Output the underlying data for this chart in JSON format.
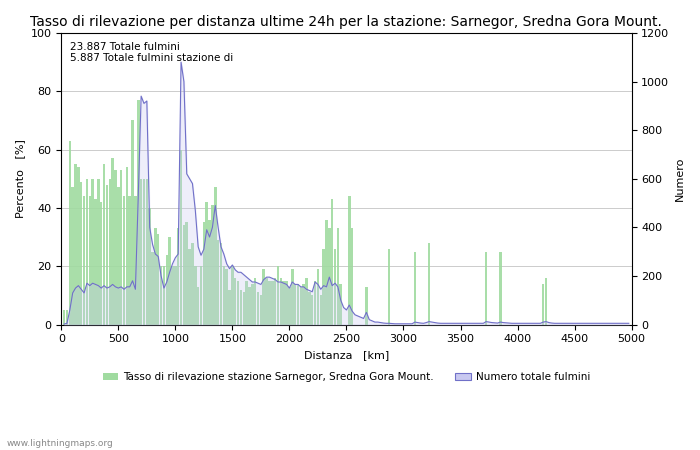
{
  "title": "Tasso di rilevazione per distanza ultime 24h per la stazione: Sarnegor, Sredna Gora Mount.",
  "xlabel": "Distanza   [km]",
  "ylabel_left": "Percento   [%]",
  "ylabel_right": "Numero",
  "annotation_line1": "23.887 Totale fulmini",
  "annotation_line2": "5.887 Totale fulmini stazione di",
  "legend_green": "Tasso di rilevazione stazione Sarnegor, Sredna Gora Mount.",
  "legend_blue": "Numero totale fulmini",
  "watermark": "www.lightningmaps.org",
  "xlim": [
    0,
    5000
  ],
  "ylim_left": [
    0,
    100
  ],
  "ylim_right": [
    0,
    1200
  ],
  "bar_color": "#a0dba0",
  "fill_color": "#c8c8f0",
  "line_color": "#7070c8",
  "background_color": "#ffffff",
  "grid_color": "#cccccc",
  "title_fontsize": 10,
  "label_fontsize": 8,
  "tick_fontsize": 8,
  "green_bars": [
    [
      25,
      5
    ],
    [
      50,
      5
    ],
    [
      75,
      63
    ],
    [
      100,
      47
    ],
    [
      125,
      55
    ],
    [
      150,
      54
    ],
    [
      175,
      49
    ],
    [
      200,
      44
    ],
    [
      225,
      50
    ],
    [
      250,
      44
    ],
    [
      275,
      50
    ],
    [
      300,
      43
    ],
    [
      325,
      50
    ],
    [
      350,
      42
    ],
    [
      375,
      55
    ],
    [
      400,
      48
    ],
    [
      425,
      50
    ],
    [
      450,
      57
    ],
    [
      475,
      53
    ],
    [
      500,
      47
    ],
    [
      525,
      53
    ],
    [
      550,
      44
    ],
    [
      575,
      54
    ],
    [
      600,
      44
    ],
    [
      625,
      70
    ],
    [
      650,
      44
    ],
    [
      675,
      77
    ],
    [
      700,
      50
    ],
    [
      725,
      50
    ],
    [
      750,
      50
    ],
    [
      775,
      40
    ],
    [
      800,
      25
    ],
    [
      825,
      33
    ],
    [
      850,
      31
    ],
    [
      875,
      20
    ],
    [
      900,
      20
    ],
    [
      925,
      24
    ],
    [
      950,
      30
    ],
    [
      975,
      20
    ],
    [
      1000,
      20
    ],
    [
      1025,
      33
    ],
    [
      1050,
      60
    ],
    [
      1075,
      34
    ],
    [
      1100,
      35
    ],
    [
      1125,
      26
    ],
    [
      1150,
      28
    ],
    [
      1175,
      20
    ],
    [
      1200,
      13
    ],
    [
      1225,
      20
    ],
    [
      1250,
      35
    ],
    [
      1275,
      42
    ],
    [
      1300,
      36
    ],
    [
      1325,
      41
    ],
    [
      1350,
      47
    ],
    [
      1375,
      29
    ],
    [
      1400,
      28
    ],
    [
      1425,
      20
    ],
    [
      1450,
      19
    ],
    [
      1475,
      12
    ],
    [
      1500,
      20
    ],
    [
      1525,
      16
    ],
    [
      1550,
      15
    ],
    [
      1575,
      12
    ],
    [
      1600,
      11
    ],
    [
      1625,
      15
    ],
    [
      1650,
      13
    ],
    [
      1675,
      14
    ],
    [
      1700,
      16
    ],
    [
      1725,
      11
    ],
    [
      1750,
      10
    ],
    [
      1775,
      19
    ],
    [
      1800,
      16
    ],
    [
      1825,
      15
    ],
    [
      1850,
      15
    ],
    [
      1875,
      16
    ],
    [
      1900,
      20
    ],
    [
      1925,
      16
    ],
    [
      1950,
      15
    ],
    [
      1975,
      15
    ],
    [
      2000,
      13
    ],
    [
      2025,
      19
    ],
    [
      2050,
      14
    ],
    [
      2075,
      14
    ],
    [
      2100,
      13
    ],
    [
      2125,
      14
    ],
    [
      2150,
      16
    ],
    [
      2175,
      11
    ],
    [
      2200,
      10
    ],
    [
      2225,
      15
    ],
    [
      2250,
      19
    ],
    [
      2275,
      10
    ],
    [
      2300,
      26
    ],
    [
      2325,
      36
    ],
    [
      2350,
      33
    ],
    [
      2375,
      43
    ],
    [
      2400,
      26
    ],
    [
      2425,
      33
    ],
    [
      2450,
      14
    ],
    [
      2475,
      0
    ],
    [
      2500,
      0
    ],
    [
      2525,
      44
    ],
    [
      2550,
      33
    ],
    [
      2575,
      0
    ],
    [
      2600,
      0
    ],
    [
      2625,
      0
    ],
    [
      2650,
      0
    ],
    [
      2675,
      13
    ],
    [
      2700,
      0
    ],
    [
      2725,
      0
    ],
    [
      2750,
      0
    ],
    [
      2775,
      0
    ],
    [
      2800,
      0
    ],
    [
      2825,
      0
    ],
    [
      2850,
      0
    ],
    [
      2875,
      26
    ],
    [
      2900,
      0
    ],
    [
      2925,
      0
    ],
    [
      2950,
      0
    ],
    [
      2975,
      0
    ],
    [
      3000,
      0
    ],
    [
      3025,
      0
    ],
    [
      3050,
      0
    ],
    [
      3075,
      0
    ],
    [
      3100,
      25
    ],
    [
      3125,
      0
    ],
    [
      3150,
      0
    ],
    [
      3175,
      0
    ],
    [
      3200,
      0
    ],
    [
      3225,
      28
    ],
    [
      3250,
      0
    ],
    [
      3275,
      0
    ],
    [
      3300,
      0
    ],
    [
      3325,
      0
    ],
    [
      3350,
      0
    ],
    [
      3375,
      0
    ],
    [
      3400,
      0
    ],
    [
      3425,
      0
    ],
    [
      3450,
      0
    ],
    [
      3475,
      0
    ],
    [
      3500,
      0
    ],
    [
      3525,
      0
    ],
    [
      3550,
      0
    ],
    [
      3575,
      0
    ],
    [
      3600,
      0
    ],
    [
      3625,
      0
    ],
    [
      3650,
      0
    ],
    [
      3675,
      0
    ],
    [
      3700,
      0
    ],
    [
      3725,
      25
    ],
    [
      3750,
      0
    ],
    [
      3775,
      0
    ],
    [
      3800,
      0
    ],
    [
      3825,
      0
    ],
    [
      3850,
      25
    ],
    [
      3875,
      0
    ],
    [
      3900,
      0
    ],
    [
      3925,
      0
    ],
    [
      3950,
      0
    ],
    [
      3975,
      0
    ],
    [
      4000,
      0
    ],
    [
      4025,
      0
    ],
    [
      4050,
      0
    ],
    [
      4075,
      0
    ],
    [
      4100,
      0
    ],
    [
      4125,
      0
    ],
    [
      4150,
      0
    ],
    [
      4175,
      0
    ],
    [
      4200,
      0
    ],
    [
      4225,
      14
    ],
    [
      4250,
      16
    ],
    [
      4275,
      0
    ],
    [
      4300,
      0
    ],
    [
      4325,
      0
    ],
    [
      4350,
      0
    ],
    [
      4375,
      0
    ],
    [
      4400,
      0
    ],
    [
      4425,
      0
    ],
    [
      4450,
      0
    ],
    [
      4475,
      0
    ],
    [
      4500,
      0
    ],
    [
      4525,
      0
    ],
    [
      4550,
      0
    ],
    [
      4575,
      0
    ],
    [
      4600,
      0
    ],
    [
      4625,
      0
    ],
    [
      4650,
      0
    ],
    [
      4675,
      0
    ],
    [
      4700,
      0
    ],
    [
      4725,
      0
    ],
    [
      4750,
      0
    ],
    [
      4775,
      0
    ],
    [
      4800,
      0
    ],
    [
      4825,
      0
    ],
    [
      4850,
      0
    ],
    [
      4875,
      0
    ],
    [
      4900,
      0
    ],
    [
      4925,
      0
    ],
    [
      4950,
      0
    ],
    [
      4975,
      0
    ]
  ],
  "blue_line_x": [
    25,
    50,
    75,
    100,
    125,
    150,
    175,
    200,
    225,
    250,
    275,
    300,
    325,
    350,
    375,
    400,
    425,
    450,
    475,
    500,
    525,
    550,
    575,
    600,
    625,
    650,
    675,
    700,
    725,
    750,
    775,
    800,
    825,
    850,
    875,
    900,
    925,
    950,
    975,
    1000,
    1025,
    1050,
    1075,
    1100,
    1125,
    1150,
    1175,
    1200,
    1225,
    1250,
    1275,
    1300,
    1325,
    1350,
    1375,
    1400,
    1425,
    1450,
    1475,
    1500,
    1525,
    1550,
    1575,
    1600,
    1625,
    1650,
    1675,
    1700,
    1725,
    1750,
    1775,
    1800,
    1825,
    1850,
    1875,
    1900,
    1925,
    1950,
    1975,
    2000,
    2025,
    2050,
    2075,
    2100,
    2125,
    2150,
    2175,
    2200,
    2225,
    2250,
    2275,
    2300,
    2325,
    2350,
    2375,
    2400,
    2425,
    2450,
    2475,
    2500,
    2525,
    2550,
    2575,
    2600,
    2625,
    2650,
    2675,
    2700,
    2725,
    2750,
    2775,
    2800,
    2825,
    2850,
    2875,
    2900,
    2925,
    2950,
    2975,
    3000,
    3025,
    3050,
    3075,
    3100,
    3125,
    3150,
    3175,
    3200,
    3225,
    3250,
    3275,
    3300,
    3325,
    3350,
    3375,
    3400,
    3425,
    3450,
    3475,
    3500,
    3525,
    3550,
    3575,
    3600,
    3625,
    3650,
    3675,
    3700,
    3725,
    3750,
    3775,
    3800,
    3825,
    3850,
    3875,
    3900,
    3925,
    3950,
    3975,
    4000,
    4025,
    4050,
    4075,
    4100,
    4125,
    4150,
    4175,
    4200,
    4225,
    4250,
    4275,
    4300,
    4325,
    4350,
    4375,
    4400,
    4425,
    4450,
    4475,
    4500,
    4525,
    4550,
    4575,
    4600,
    4625,
    4650,
    4675,
    4700,
    4725,
    4750,
    4775,
    4800,
    4825,
    4850,
    4875,
    4900,
    4925,
    4950,
    4975
  ],
  "blue_line_y": [
    2,
    5,
    60,
    130,
    150,
    160,
    145,
    130,
    170,
    160,
    170,
    165,
    160,
    150,
    160,
    150,
    155,
    165,
    155,
    150,
    155,
    145,
    155,
    155,
    180,
    145,
    530,
    940,
    910,
    920,
    400,
    330,
    290,
    280,
    200,
    150,
    175,
    215,
    250,
    275,
    290,
    1080,
    1000,
    620,
    600,
    580,
    470,
    320,
    285,
    310,
    390,
    360,
    400,
    490,
    400,
    320,
    290,
    250,
    230,
    245,
    225,
    215,
    215,
    205,
    195,
    185,
    175,
    175,
    170,
    165,
    185,
    195,
    195,
    190,
    185,
    175,
    175,
    170,
    165,
    150,
    175,
    165,
    165,
    155,
    155,
    145,
    140,
    135,
    175,
    165,
    145,
    160,
    155,
    195,
    160,
    170,
    155,
    100,
    70,
    60,
    80,
    55,
    40,
    35,
    30,
    25,
    50,
    20,
    15,
    10,
    10,
    8,
    6,
    5,
    5,
    4,
    3,
    3,
    3,
    3,
    3,
    3,
    3,
    10,
    8,
    6,
    5,
    8,
    12,
    10,
    8,
    6,
    5,
    5,
    5,
    5,
    5,
    5,
    5,
    5,
    5,
    5,
    5,
    5,
    5,
    5,
    5,
    5,
    12,
    10,
    8,
    7,
    6,
    10,
    8,
    7,
    6,
    5,
    5,
    5,
    5,
    5,
    5,
    5,
    5,
    5,
    5,
    5,
    10,
    12,
    8,
    6,
    5,
    5,
    5,
    5,
    5,
    5,
    5,
    5,
    5,
    5,
    5,
    5,
    5,
    5,
    5,
    5,
    5,
    5,
    5,
    5,
    5,
    5,
    5,
    5,
    5,
    5,
    5
  ]
}
